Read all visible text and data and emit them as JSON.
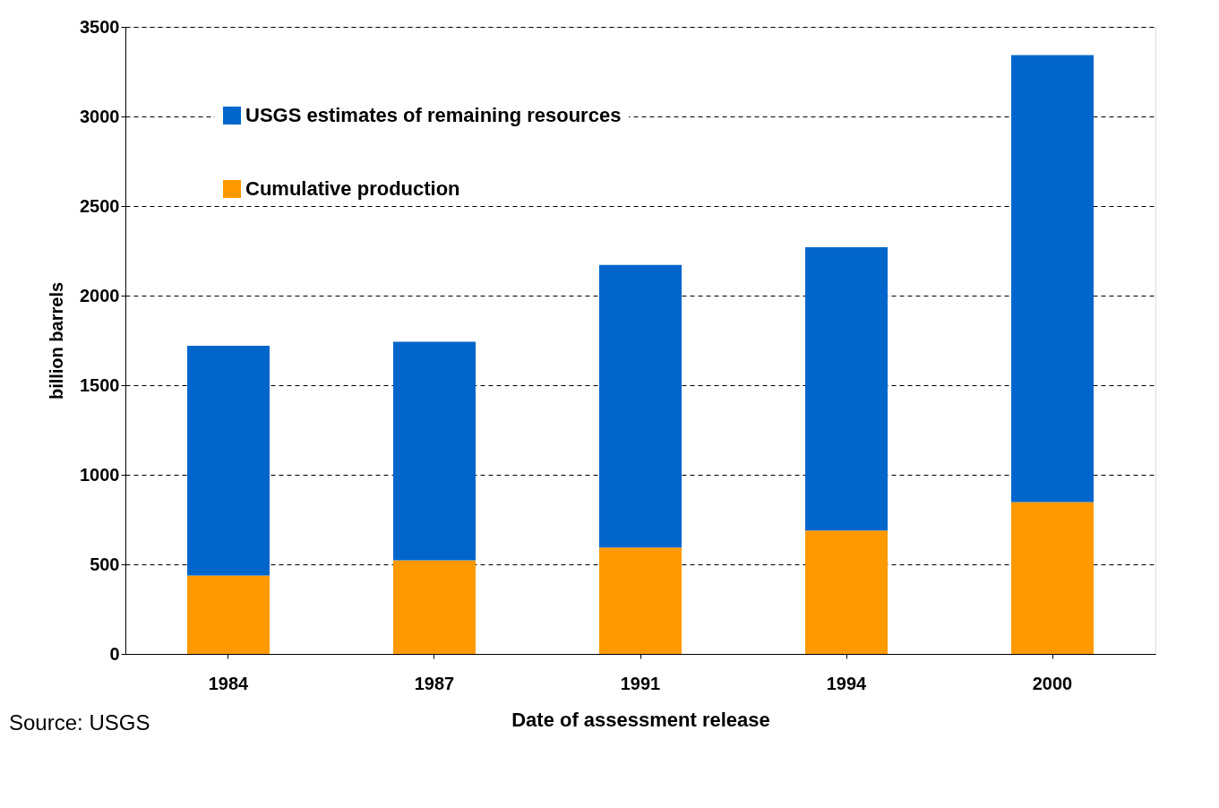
{
  "chart_data": {
    "type": "bar",
    "stacked": true,
    "xlabel": "Date of assessment release",
    "ylabel": "billion barrels",
    "categories": [
      "1984",
      "1987",
      "1991",
      "1994",
      "2000"
    ],
    "series": [
      {
        "name": "Cumulative production",
        "color": "#ff9900",
        "values": [
          437,
          522,
          594,
          689,
          847
        ]
      },
      {
        "name": "USGS estimates of remaining resources",
        "color": "#0066cc",
        "values": [
          1283,
          1221,
          1577,
          1581,
          2495
        ]
      }
    ],
    "ylim": [
      0,
      3500
    ],
    "yticks": [
      0,
      500,
      1000,
      1500,
      2000,
      2500,
      3000,
      3500
    ],
    "grid": "y",
    "legend": "top left",
    "annotations": [
      "Source: USGS"
    ]
  }
}
